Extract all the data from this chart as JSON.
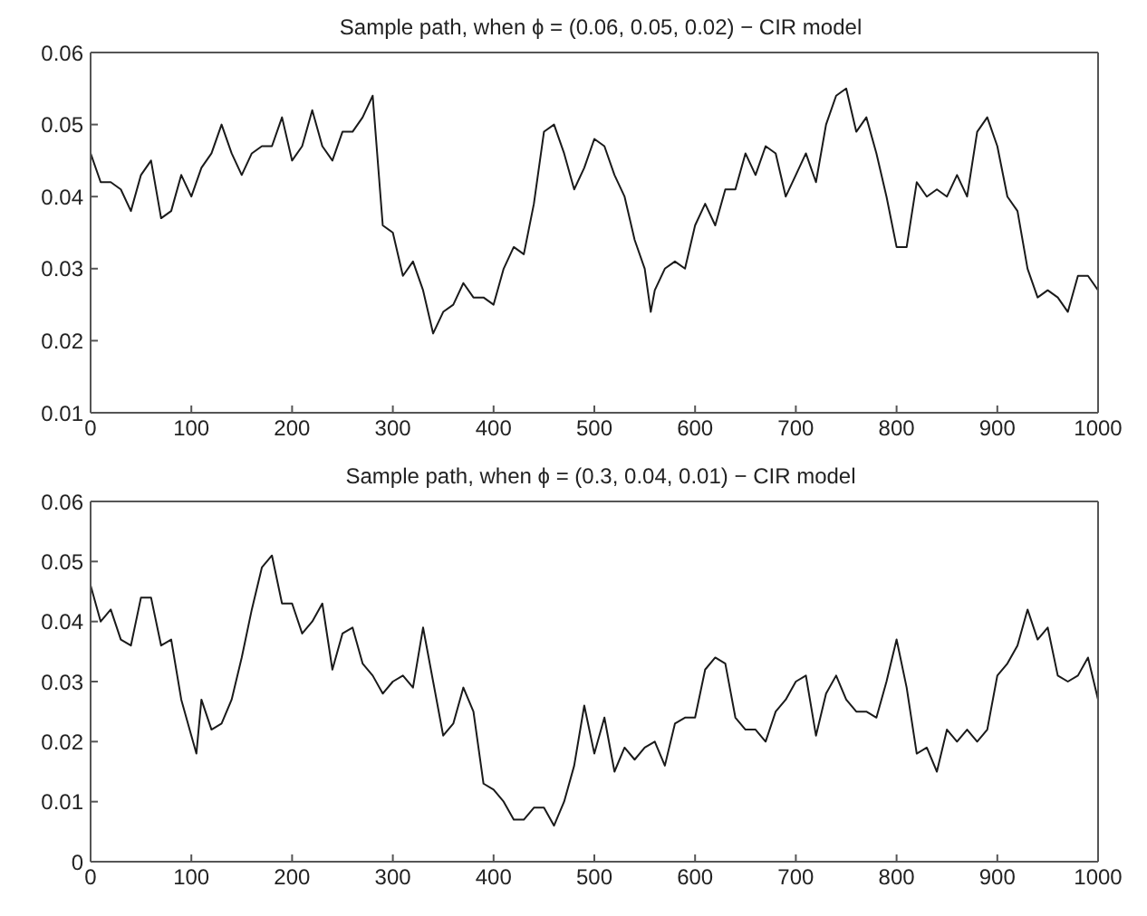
{
  "chart_data": [
    {
      "type": "line",
      "title": "Sample path, when ϕ = (0.06, 0.05, 0.02) − CIR model",
      "xlim": [
        0,
        1000
      ],
      "xticks": [
        0,
        100,
        200,
        300,
        400,
        500,
        600,
        700,
        800,
        900,
        1000
      ],
      "ylim": [
        0.01,
        0.06
      ],
      "yticks": [
        0.01,
        0.02,
        0.03,
        0.04,
        0.05,
        0.06
      ],
      "grid": false,
      "legend": false,
      "marker": "none",
      "line_style": "solid",
      "x": [
        0,
        10,
        20,
        30,
        40,
        50,
        60,
        70,
        80,
        90,
        100,
        110,
        120,
        130,
        140,
        150,
        160,
        170,
        180,
        190,
        200,
        210,
        220,
        230,
        240,
        250,
        260,
        270,
        280,
        290,
        300,
        310,
        320,
        330,
        340,
        350,
        360,
        370,
        380,
        390,
        400,
        410,
        420,
        430,
        440,
        450,
        460,
        470,
        480,
        490,
        500,
        510,
        520,
        530,
        540,
        550,
        556,
        560,
        570,
        580,
        590,
        600,
        610,
        620,
        630,
        640,
        650,
        660,
        670,
        680,
        690,
        700,
        710,
        720,
        730,
        740,
        750,
        760,
        770,
        780,
        790,
        800,
        810,
        820,
        830,
        840,
        850,
        860,
        870,
        880,
        890,
        900,
        910,
        920,
        930,
        940,
        950,
        960,
        970,
        980,
        990,
        1000
      ],
      "series": [
        {
          "color": "#1a1a1a",
          "values": [
            0.046,
            0.042,
            0.042,
            0.041,
            0.038,
            0.043,
            0.045,
            0.037,
            0.038,
            0.043,
            0.04,
            0.044,
            0.046,
            0.05,
            0.046,
            0.043,
            0.046,
            0.047,
            0.047,
            0.051,
            0.045,
            0.047,
            0.052,
            0.047,
            0.045,
            0.049,
            0.049,
            0.051,
            0.054,
            0.036,
            0.035,
            0.029,
            0.031,
            0.027,
            0.021,
            0.024,
            0.025,
            0.028,
            0.026,
            0.026,
            0.025,
            0.03,
            0.033,
            0.032,
            0.039,
            0.049,
            0.05,
            0.046,
            0.041,
            0.044,
            0.048,
            0.047,
            0.043,
            0.04,
            0.034,
            0.03,
            0.024,
            0.027,
            0.03,
            0.031,
            0.03,
            0.036,
            0.039,
            0.036,
            0.041,
            0.041,
            0.046,
            0.043,
            0.047,
            0.046,
            0.04,
            0.043,
            0.046,
            0.042,
            0.05,
            0.054,
            0.055,
            0.049,
            0.051,
            0.046,
            0.04,
            0.033,
            0.033,
            0.042,
            0.04,
            0.041,
            0.04,
            0.043,
            0.04,
            0.049,
            0.051,
            0.047,
            0.04,
            0.038,
            0.03,
            0.026,
            0.027,
            0.026,
            0.024,
            0.029,
            0.029,
            0.027
          ]
        }
      ]
    },
    {
      "type": "line",
      "title": "Sample path, when ϕ = (0.3, 0.04, 0.01) − CIR model",
      "xlim": [
        0,
        1000
      ],
      "xticks": [
        0,
        100,
        200,
        300,
        400,
        500,
        600,
        700,
        800,
        900,
        1000
      ],
      "ylim": [
        0,
        0.06
      ],
      "yticks": [
        0,
        0.01,
        0.02,
        0.03,
        0.04,
        0.05,
        0.06
      ],
      "grid": false,
      "legend": false,
      "marker": "none",
      "line_style": "solid",
      "x": [
        0,
        10,
        20,
        30,
        40,
        50,
        60,
        70,
        80,
        90,
        100,
        105,
        110,
        120,
        130,
        140,
        150,
        160,
        170,
        180,
        190,
        200,
        210,
        220,
        230,
        240,
        250,
        260,
        270,
        280,
        290,
        300,
        310,
        320,
        330,
        340,
        350,
        360,
        370,
        380,
        390,
        400,
        410,
        420,
        430,
        440,
        450,
        460,
        470,
        480,
        490,
        500,
        510,
        520,
        530,
        540,
        550,
        560,
        570,
        580,
        590,
        600,
        610,
        620,
        630,
        640,
        650,
        660,
        670,
        680,
        690,
        700,
        710,
        720,
        730,
        740,
        750,
        760,
        770,
        780,
        790,
        800,
        810,
        820,
        830,
        840,
        850,
        860,
        870,
        880,
        890,
        900,
        910,
        920,
        930,
        940,
        950,
        960,
        970,
        980,
        990,
        1000
      ],
      "series": [
        {
          "color": "#1a1a1a",
          "values": [
            0.046,
            0.04,
            0.042,
            0.037,
            0.036,
            0.044,
            0.044,
            0.036,
            0.037,
            0.027,
            0.021,
            0.018,
            0.027,
            0.022,
            0.023,
            0.027,
            0.034,
            0.042,
            0.049,
            0.051,
            0.043,
            0.043,
            0.038,
            0.04,
            0.043,
            0.032,
            0.038,
            0.039,
            0.033,
            0.031,
            0.028,
            0.03,
            0.031,
            0.029,
            0.039,
            0.03,
            0.021,
            0.023,
            0.029,
            0.025,
            0.013,
            0.012,
            0.01,
            0.007,
            0.007,
            0.009,
            0.009,
            0.006,
            0.01,
            0.016,
            0.026,
            0.018,
            0.024,
            0.015,
            0.019,
            0.017,
            0.019,
            0.02,
            0.016,
            0.023,
            0.024,
            0.024,
            0.032,
            0.034,
            0.033,
            0.024,
            0.022,
            0.022,
            0.02,
            0.025,
            0.027,
            0.03,
            0.031,
            0.021,
            0.028,
            0.031,
            0.027,
            0.025,
            0.025,
            0.024,
            0.03,
            0.037,
            0.029,
            0.018,
            0.019,
            0.015,
            0.022,
            0.02,
            0.022,
            0.02,
            0.022,
            0.031,
            0.033,
            0.036,
            0.042,
            0.037,
            0.039,
            0.031,
            0.03,
            0.031,
            0.034,
            0.027
          ]
        }
      ]
    }
  ]
}
